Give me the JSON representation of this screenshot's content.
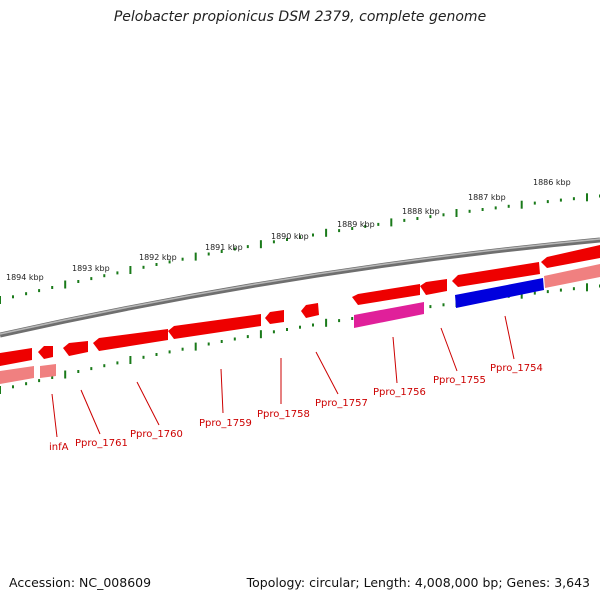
{
  "title": "Pelobacter propionicus DSM 2379, complete genome",
  "footer": {
    "accession": "Accession: NC_008609",
    "summary": "Topology: circular; Length: 4,008,000 bp; Genes: 3,643"
  },
  "colors": {
    "forward_gene": "#ee0000",
    "reverse_gene": "#f08080",
    "highlight_pink": "#e0209a",
    "highlight_blue": "#0000dd",
    "backbone": "#808080",
    "tick": "#1a7a1a",
    "label": "#cc0000"
  },
  "scale_labels": [
    {
      "kbp": 1894,
      "text": "1894 kbp"
    },
    {
      "kbp": 1893,
      "text": "1893 kbp"
    },
    {
      "kbp": 1892,
      "text": "1892 kbp"
    },
    {
      "kbp": 1891,
      "text": "1891 kbp"
    },
    {
      "kbp": 1890,
      "text": "1890 kbp"
    },
    {
      "kbp": 1889,
      "text": "1889 kbp"
    },
    {
      "kbp": 1888,
      "text": "1888 kbp"
    },
    {
      "kbp": 1887,
      "text": "1887 kbp"
    },
    {
      "kbp": 1886,
      "text": "1886 kbp"
    }
  ],
  "gene_labels": [
    "infA",
    "Ppro_1761",
    "Ppro_1760",
    "Ppro_1759",
    "Ppro_1758",
    "Ppro_1757",
    "Ppro_1756",
    "Ppro_1755",
    "Ppro_1754"
  ]
}
